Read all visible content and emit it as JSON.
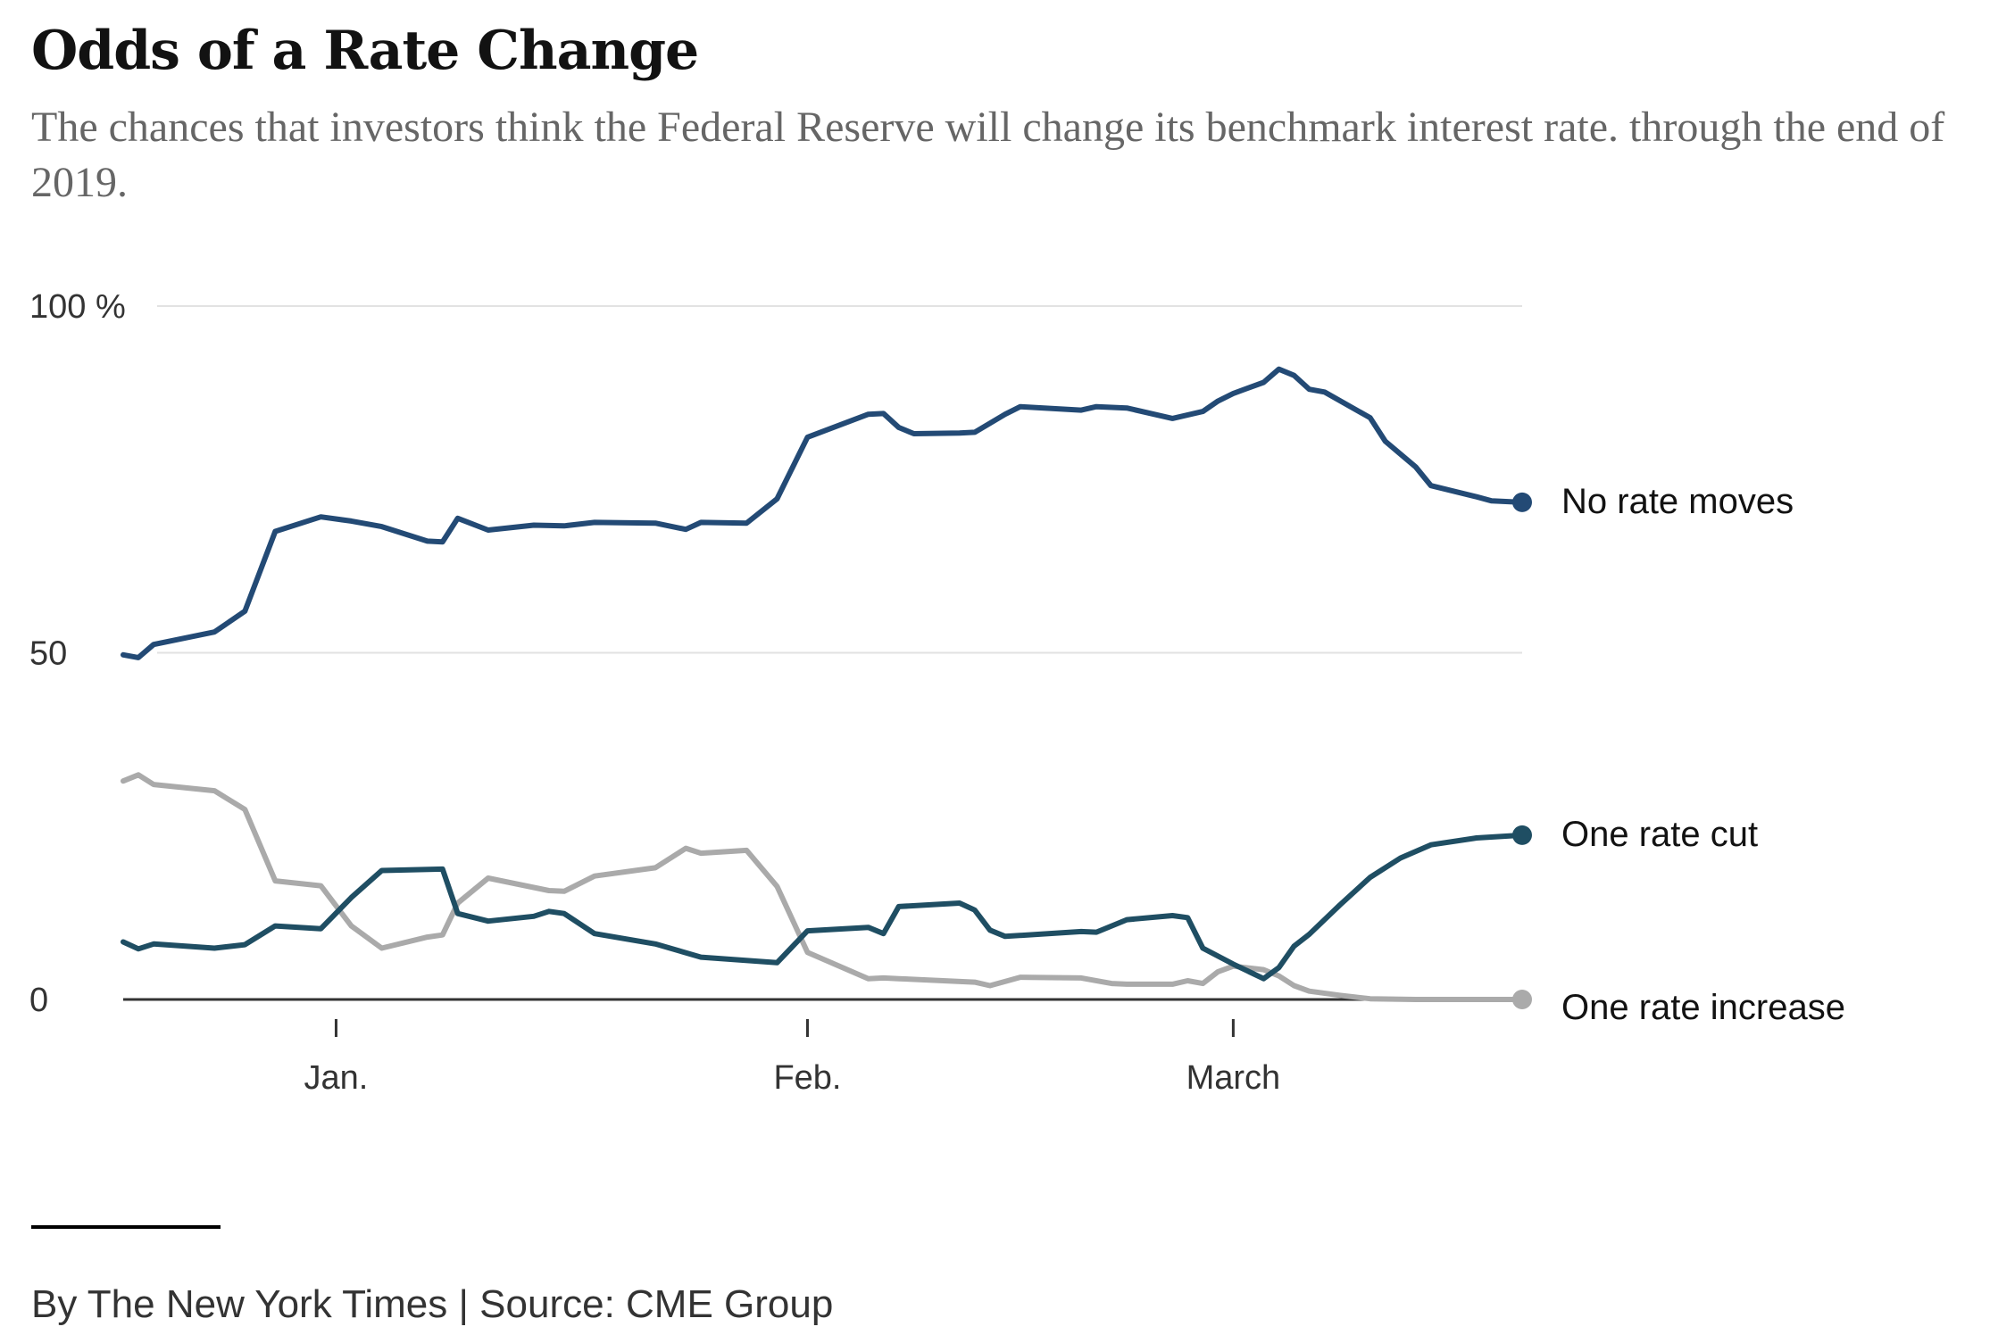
{
  "header": {
    "title": "Odds of a Rate Change",
    "subtitle": "The chances that investors think the Federal Reserve will change its benchmark interest rate. through the end of 2019."
  },
  "footer": {
    "credit": "By The New York Times | Source: CME Group"
  },
  "chart_data": {
    "type": "line",
    "title": "Odds of a Rate Change",
    "subtitle": "The chances that investors think the Federal Reserve will change its benchmark interest rate. through the end of 2019.",
    "xlabel": "",
    "ylabel": "",
    "xlim": [
      "2018-12-18",
      "2019-03-20"
    ],
    "ylim": [
      0,
      100
    ],
    "y_ticks": [
      {
        "value": 100,
        "label": "100 %"
      },
      {
        "value": 50,
        "label": "50"
      },
      {
        "value": 0,
        "label": "0"
      }
    ],
    "x_ticks": [
      {
        "value": "2019-01-01",
        "label": "Jan."
      },
      {
        "value": "2019-02-01",
        "label": "Feb."
      },
      {
        "value": "2019-03-01",
        "label": "March"
      }
    ],
    "grid": true,
    "legend": "direct labels at line ends",
    "series": [
      {
        "name": "No rate moves",
        "color": "#234a75",
        "points": [
          [
            "2018-12-18",
            49.7
          ],
          [
            "2018-12-19",
            49.3
          ],
          [
            "2018-12-20",
            51.2
          ],
          [
            "2018-12-24",
            53.0
          ],
          [
            "2018-12-26",
            56.0
          ],
          [
            "2018-12-28",
            67.5
          ],
          [
            "2018-12-31",
            69.6
          ],
          [
            "2019-01-02",
            69.0
          ],
          [
            "2019-01-04",
            68.2
          ],
          [
            "2019-01-07",
            66.1
          ],
          [
            "2019-01-08",
            66.0
          ],
          [
            "2019-01-09",
            69.4
          ],
          [
            "2019-01-11",
            67.7
          ],
          [
            "2019-01-14",
            68.4
          ],
          [
            "2019-01-16",
            68.3
          ],
          [
            "2019-01-18",
            68.8
          ],
          [
            "2019-01-22",
            68.7
          ],
          [
            "2019-01-24",
            67.8
          ],
          [
            "2019-01-25",
            68.8
          ],
          [
            "2019-01-28",
            68.7
          ],
          [
            "2019-01-30",
            72.2
          ],
          [
            "2019-02-01",
            81.1
          ],
          [
            "2019-02-05",
            84.4
          ],
          [
            "2019-02-06",
            84.5
          ],
          [
            "2019-02-07",
            82.5
          ],
          [
            "2019-02-08",
            81.6
          ],
          [
            "2019-02-11",
            81.7
          ],
          [
            "2019-02-12",
            81.8
          ],
          [
            "2019-02-14",
            84.4
          ],
          [
            "2019-02-15",
            85.5
          ],
          [
            "2019-02-19",
            85.0
          ],
          [
            "2019-02-20",
            85.5
          ],
          [
            "2019-02-22",
            85.3
          ],
          [
            "2019-02-25",
            83.8
          ],
          [
            "2019-02-27",
            84.8
          ],
          [
            "2019-02-28",
            86.3
          ],
          [
            "2019-03-01",
            87.4
          ],
          [
            "2019-03-03",
            89.0
          ],
          [
            "2019-03-04",
            90.9
          ],
          [
            "2019-03-05",
            90.0
          ],
          [
            "2019-03-06",
            88.0
          ],
          [
            "2019-03-07",
            87.6
          ],
          [
            "2019-03-10",
            83.9
          ],
          [
            "2019-03-11",
            80.5
          ],
          [
            "2019-03-13",
            76.8
          ],
          [
            "2019-03-14",
            74.1
          ],
          [
            "2019-03-17",
            72.5
          ],
          [
            "2019-03-18",
            71.9
          ],
          [
            "2019-03-20",
            71.7
          ]
        ]
      },
      {
        "name": "One rate cut",
        "color": "#1f4e63",
        "points": [
          [
            "2018-12-18",
            8.3
          ],
          [
            "2018-12-19",
            7.3
          ],
          [
            "2018-12-20",
            8.0
          ],
          [
            "2018-12-24",
            7.4
          ],
          [
            "2018-12-26",
            7.9
          ],
          [
            "2018-12-28",
            10.6
          ],
          [
            "2018-12-31",
            10.2
          ],
          [
            "2019-01-02",
            14.7
          ],
          [
            "2019-01-04",
            18.6
          ],
          [
            "2019-01-08",
            18.8
          ],
          [
            "2019-01-09",
            12.4
          ],
          [
            "2019-01-11",
            11.3
          ],
          [
            "2019-01-14",
            12.0
          ],
          [
            "2019-01-15",
            12.7
          ],
          [
            "2019-01-16",
            12.4
          ],
          [
            "2019-01-18",
            9.5
          ],
          [
            "2019-01-22",
            8.0
          ],
          [
            "2019-01-25",
            6.1
          ],
          [
            "2019-01-30",
            5.3
          ],
          [
            "2019-02-01",
            9.9
          ],
          [
            "2019-02-05",
            10.4
          ],
          [
            "2019-02-06",
            9.5
          ],
          [
            "2019-02-07",
            13.4
          ],
          [
            "2019-02-11",
            13.9
          ],
          [
            "2019-02-12",
            12.9
          ],
          [
            "2019-02-13",
            10.0
          ],
          [
            "2019-02-14",
            9.1
          ],
          [
            "2019-02-19",
            9.8
          ],
          [
            "2019-02-20",
            9.7
          ],
          [
            "2019-02-22",
            11.5
          ],
          [
            "2019-02-25",
            12.1
          ],
          [
            "2019-02-26",
            11.8
          ],
          [
            "2019-02-27",
            7.4
          ],
          [
            "2019-03-01",
            5.1
          ],
          [
            "2019-03-03",
            3.0
          ],
          [
            "2019-03-04",
            4.6
          ],
          [
            "2019-03-05",
            7.7
          ],
          [
            "2019-03-06",
            9.4
          ],
          [
            "2019-03-08",
            13.6
          ],
          [
            "2019-03-10",
            17.6
          ],
          [
            "2019-03-12",
            20.4
          ],
          [
            "2019-03-14",
            22.3
          ],
          [
            "2019-03-17",
            23.3
          ],
          [
            "2019-03-20",
            23.7
          ]
        ]
      },
      {
        "name": "One rate increase",
        "color": "#aaaaaa",
        "points": [
          [
            "2018-12-18",
            31.5
          ],
          [
            "2018-12-19",
            32.4
          ],
          [
            "2018-12-20",
            31.0
          ],
          [
            "2018-12-24",
            30.1
          ],
          [
            "2018-12-26",
            27.4
          ],
          [
            "2018-12-28",
            17.1
          ],
          [
            "2018-12-31",
            16.4
          ],
          [
            "2019-01-02",
            10.6
          ],
          [
            "2019-01-04",
            7.4
          ],
          [
            "2019-01-07",
            9.0
          ],
          [
            "2019-01-08",
            9.3
          ],
          [
            "2019-01-09",
            13.9
          ],
          [
            "2019-01-11",
            17.5
          ],
          [
            "2019-01-15",
            15.7
          ],
          [
            "2019-01-16",
            15.6
          ],
          [
            "2019-01-18",
            17.8
          ],
          [
            "2019-01-22",
            19.0
          ],
          [
            "2019-01-24",
            21.8
          ],
          [
            "2019-01-25",
            21.1
          ],
          [
            "2019-01-28",
            21.5
          ],
          [
            "2019-01-30",
            16.3
          ],
          [
            "2019-02-01",
            6.8
          ],
          [
            "2019-02-05",
            3.0
          ],
          [
            "2019-02-06",
            3.1
          ],
          [
            "2019-02-07",
            3.0
          ],
          [
            "2019-02-12",
            2.5
          ],
          [
            "2019-02-13",
            2.0
          ],
          [
            "2019-02-15",
            3.2
          ],
          [
            "2019-02-19",
            3.1
          ],
          [
            "2019-02-21",
            2.3
          ],
          [
            "2019-02-22",
            2.2
          ],
          [
            "2019-02-25",
            2.2
          ],
          [
            "2019-02-26",
            2.7
          ],
          [
            "2019-02-27",
            2.3
          ],
          [
            "2019-02-28",
            4.0
          ],
          [
            "2019-03-01",
            4.8
          ],
          [
            "2019-03-03",
            4.3
          ],
          [
            "2019-03-04",
            3.4
          ],
          [
            "2019-03-05",
            2.0
          ],
          [
            "2019-03-06",
            1.2
          ],
          [
            "2019-03-08",
            0.6
          ],
          [
            "2019-03-10",
            0.1
          ],
          [
            "2019-03-13",
            0.0
          ],
          [
            "2019-03-20",
            0.0
          ]
        ]
      }
    ]
  }
}
